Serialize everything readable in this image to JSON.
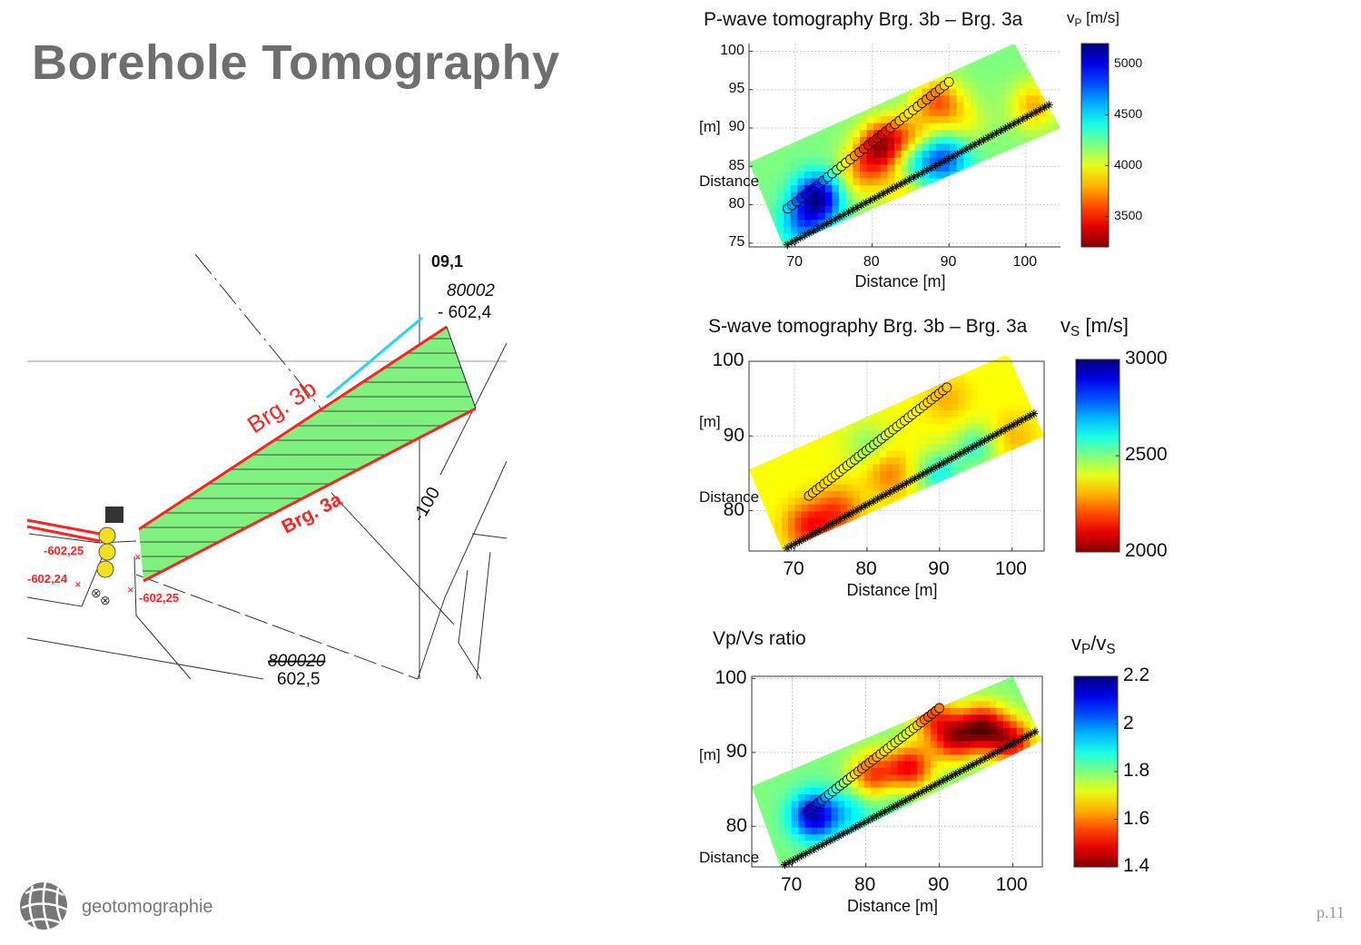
{
  "slide": {
    "title": "Borehole Tomography",
    "logo_text": "geotomographie",
    "page_number": "p.11"
  },
  "map": {
    "labels": {
      "top_value": "09,1",
      "point_id_top": "80002",
      "elev_top": "- 602,4",
      "brg_3b": "Brg. 3b",
      "brg_3a": "Brg. 3a",
      "contour": "-100",
      "elev_left1": "-602,25",
      "elev_left2": "-602,24",
      "elev_bottom": "-602,25",
      "point_id_bottom": "800020",
      "elev_bottom2": "602,5"
    },
    "colors": {
      "area_fill": "#80f080",
      "borehole_line": "#ff2020",
      "extension_line": "#20d8f0",
      "marker": "#f0e020"
    }
  },
  "chart_data": [
    {
      "type": "heatmap",
      "title": "P-wave tomography Brg. 3b – Brg. 3a",
      "xlabel": "Distance [m]",
      "ylabel": "Distance",
      "ylabel_unit": "[m]",
      "xlim": [
        64,
        104.5
      ],
      "ylim": [
        74.5,
        101
      ],
      "xticks": [
        70,
        80,
        90,
        100
      ],
      "yticks": [
        75,
        80,
        85,
        90,
        95,
        100
      ],
      "grid": true,
      "colorbar": {
        "label": "v",
        "label_sub": "P",
        "label_unit": "[m/s]",
        "min": 3200,
        "max": 5200,
        "ticks": [
          3500,
          4000,
          4500,
          5000
        ],
        "colormap": "jet-reversed"
      },
      "region": [
        [
          64,
          85.5
        ],
        [
          98.5,
          101
        ],
        [
          104.5,
          90
        ],
        [
          68.5,
          74.5
        ]
      ],
      "background_value": 4200,
      "anomalies": [
        {
          "x": 73,
          "y": 81,
          "value": 5100
        },
        {
          "x": 71,
          "y": 77.5,
          "value": 4650
        },
        {
          "x": 81.5,
          "y": 88,
          "value": 3450
        },
        {
          "x": 79.5,
          "y": 85.5,
          "value": 3800
        },
        {
          "x": 78,
          "y": 83,
          "value": 4000
        },
        {
          "x": 85,
          "y": 89,
          "value": 3850
        },
        {
          "x": 85.5,
          "y": 85.5,
          "value": 4550
        },
        {
          "x": 89.5,
          "y": 86,
          "value": 4750
        },
        {
          "x": 88.5,
          "y": 93.5,
          "value": 3650
        },
        {
          "x": 92,
          "y": 91,
          "value": 4000
        },
        {
          "x": 101,
          "y": 93,
          "value": 3800
        },
        {
          "x": 84,
          "y": 82.5,
          "value": 3900
        }
      ],
      "borehole_3b": {
        "start": [
          69,
          79.5
        ],
        "end": [
          90,
          96
        ],
        "marker": "circle"
      },
      "borehole_3a": {
        "start": [
          69,
          74.8
        ],
        "end": [
          103,
          93
        ],
        "marker": "asterisk"
      }
    },
    {
      "type": "heatmap",
      "title": "S-wave tomography Brg. 3b – Brg. 3a",
      "xlabel": "Distance [m]",
      "ylabel": "Distance",
      "ylabel_unit": "[m]",
      "xlim": [
        63.75,
        104.4
      ],
      "ylim": [
        74.6,
        100
      ],
      "xticks": [
        70,
        80,
        90,
        100
      ],
      "yticks": [
        80,
        90,
        100
      ],
      "grid": true,
      "colorbar": {
        "label": "v",
        "label_sub": "S",
        "label_unit": "[m/s]",
        "min": 2000,
        "max": 3000,
        "ticks": [
          2000,
          2500,
          3000
        ],
        "colormap": "jet-reversed"
      },
      "region": [
        [
          63.75,
          85.5
        ],
        [
          99.4,
          101
        ],
        [
          104.4,
          90
        ],
        [
          68.4,
          74.6
        ]
      ],
      "background_value": 2380,
      "anomalies": [
        {
          "x": 72,
          "y": 78,
          "value": 2150
        },
        {
          "x": 76,
          "y": 80,
          "value": 2200
        },
        {
          "x": 83,
          "y": 85,
          "value": 2250
        },
        {
          "x": 90,
          "y": 85,
          "value": 2600
        },
        {
          "x": 95,
          "y": 88.5,
          "value": 2560
        },
        {
          "x": 80,
          "y": 89,
          "value": 2480
        },
        {
          "x": 100,
          "y": 90,
          "value": 2300
        },
        {
          "x": 91,
          "y": 95,
          "value": 2300
        }
      ],
      "borehole_3b": {
        "start": [
          72,
          82
        ],
        "end": [
          91,
          96.5
        ],
        "marker": "circle"
      },
      "borehole_3a": {
        "start": [
          69,
          75
        ],
        "end": [
          103,
          93
        ],
        "marker": "asterisk"
      }
    },
    {
      "type": "heatmap",
      "title": "Vp/Vs ratio",
      "xlabel": "Distance [m]",
      "ylabel": "Distance",
      "ylabel_unit": "[m]",
      "xlim": [
        64.5,
        104
      ],
      "ylim": [
        74.5,
        100.3
      ],
      "xticks": [
        70,
        80,
        90,
        100
      ],
      "yticks": [
        80,
        90,
        100
      ],
      "grid": true,
      "colorbar": {
        "label": "v",
        "label_sub": "P",
        "label_mid": "/v",
        "label_sub2": "S",
        "label_unit": "",
        "min": 1.4,
        "max": 2.2,
        "ticks": [
          1.4,
          1.6,
          1.8,
          2,
          2.2
        ],
        "colormap": "jet-reversed"
      },
      "region": [
        [
          64.5,
          85.4
        ],
        [
          100,
          100.3
        ],
        [
          104,
          91.6
        ],
        [
          68.4,
          74.5
        ]
      ],
      "background_value": 1.8,
      "anomalies": [
        {
          "x": 73,
          "y": 81.5,
          "value": 2.15
        },
        {
          "x": 78,
          "y": 82,
          "value": 1.9
        },
        {
          "x": 81,
          "y": 87,
          "value": 1.55
        },
        {
          "x": 86,
          "y": 88,
          "value": 1.5
        },
        {
          "x": 92,
          "y": 92,
          "value": 1.5
        },
        {
          "x": 96,
          "y": 93.5,
          "value": 1.45
        },
        {
          "x": 100,
          "y": 91.5,
          "value": 1.5
        },
        {
          "x": 89,
          "y": 95,
          "value": 1.6
        },
        {
          "x": 84,
          "y": 84,
          "value": 1.85
        }
      ],
      "borehole_3b": {
        "start": [
          72,
          82
        ],
        "end": [
          90,
          96
        ],
        "marker": "circle"
      },
      "borehole_3a": {
        "start": [
          69,
          74.8
        ],
        "end": [
          103,
          92.8
        ],
        "marker": "asterisk"
      }
    }
  ]
}
